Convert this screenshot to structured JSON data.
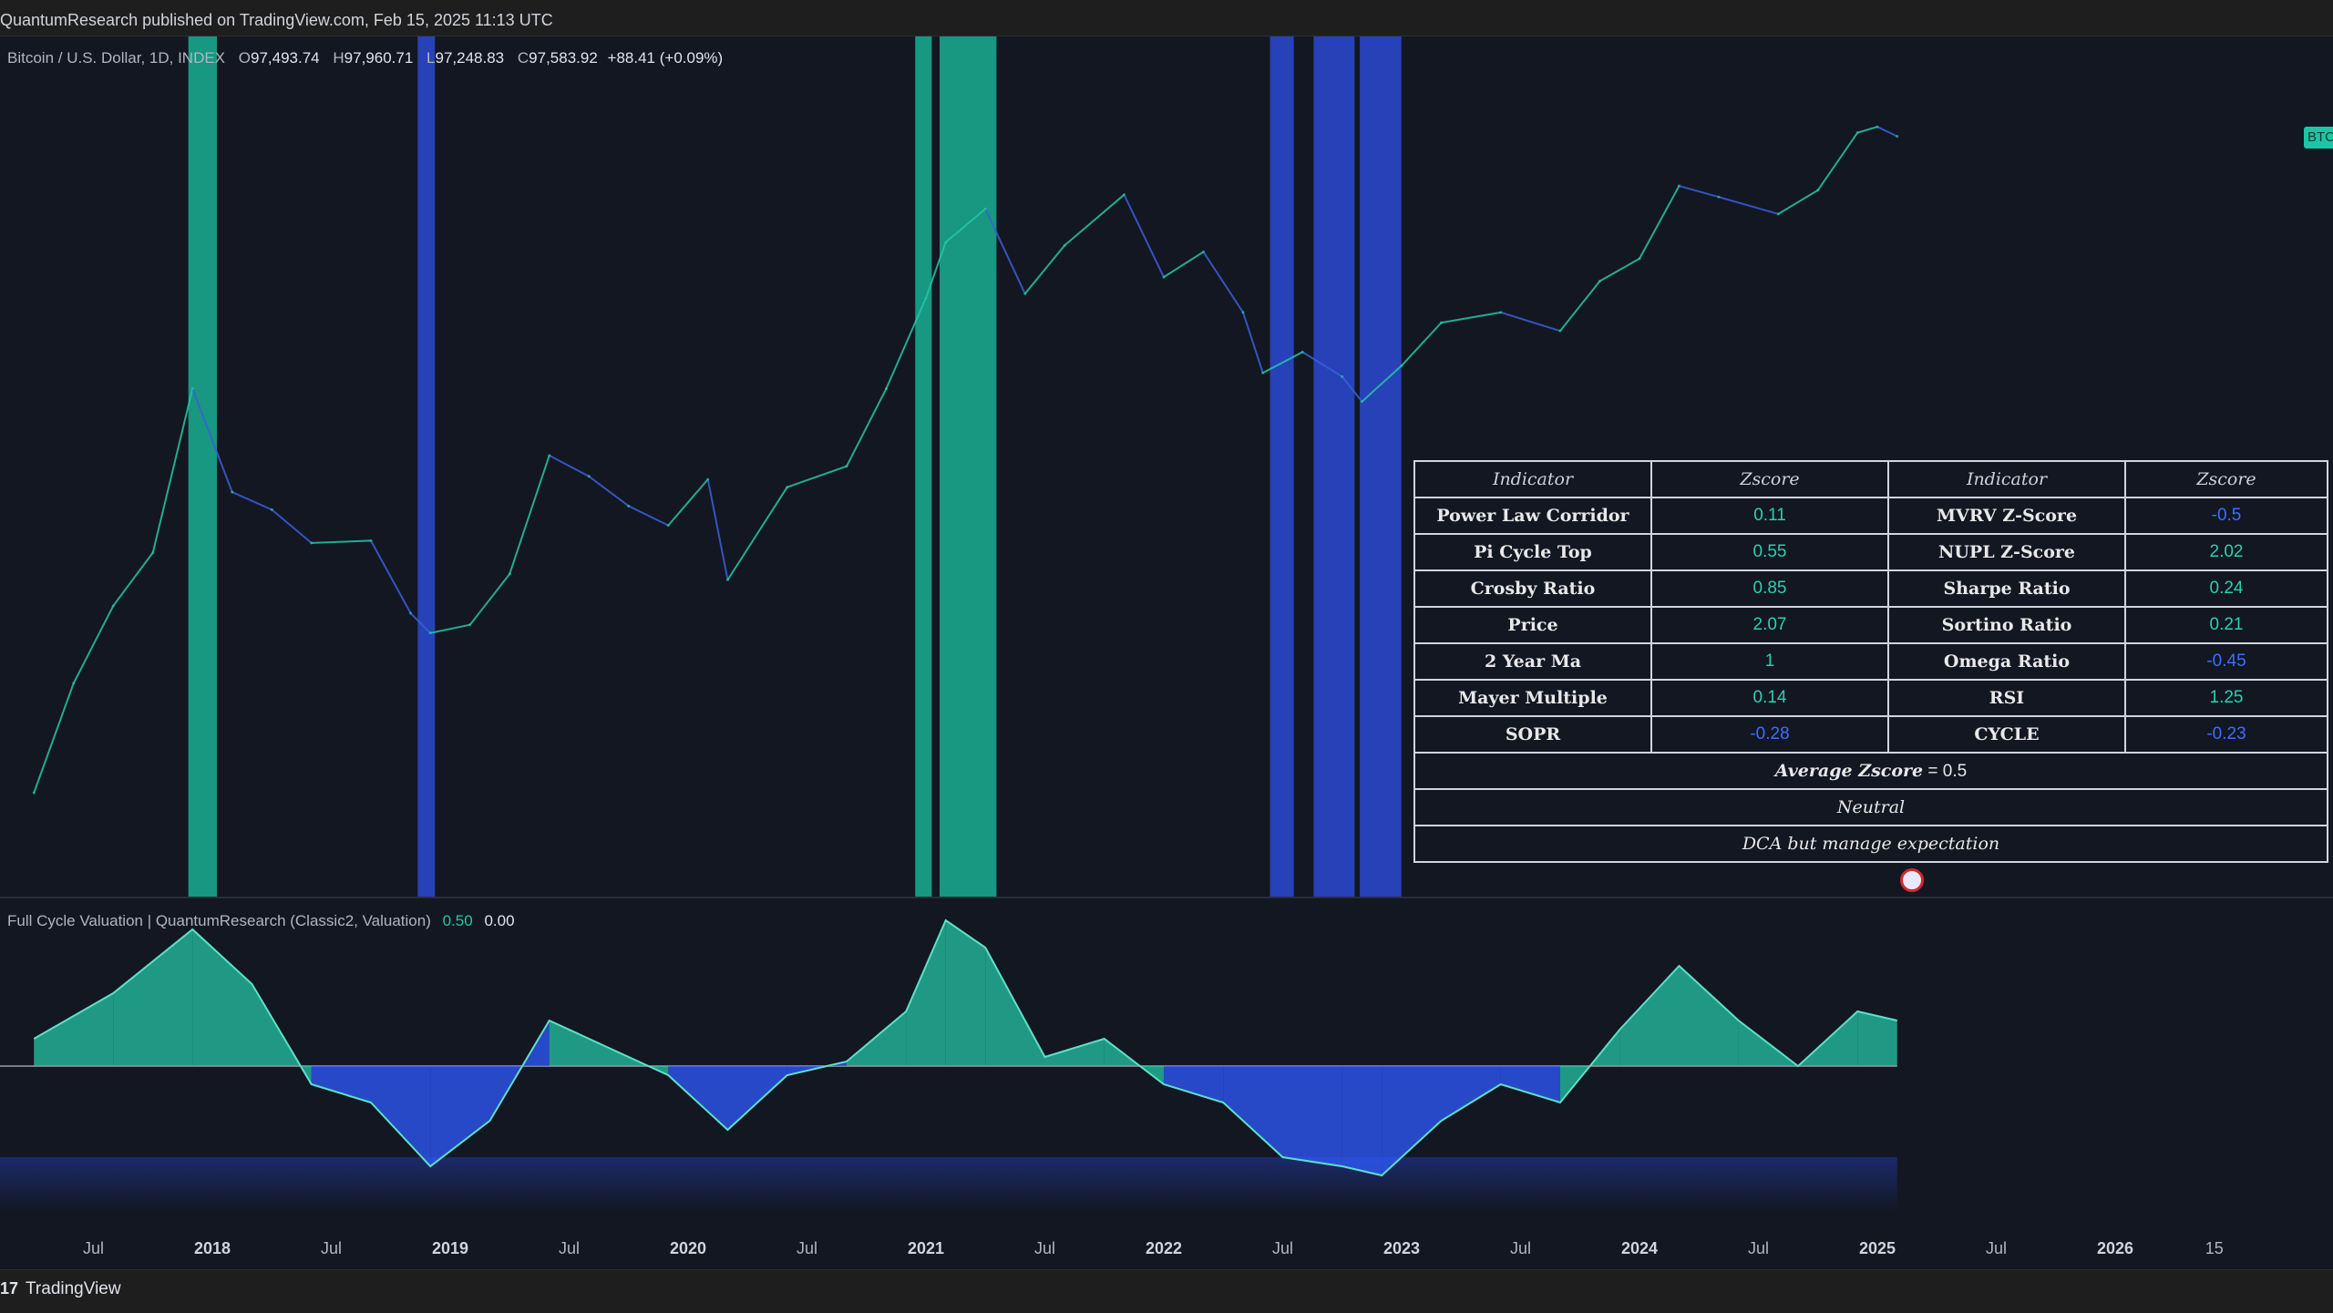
{
  "header": {
    "publish_line": "QuantumResearch published on TradingView.com, Feb 15, 2025 11:13 UTC"
  },
  "symbol": {
    "name": "Bitcoin / U.S. Dollar, 1D, INDEX",
    "o_label": "O",
    "o": "97,493.74",
    "h_label": "H",
    "h": "97,960.71",
    "l_label": "L",
    "l": "97,248.83",
    "c_label": "C",
    "c": "97,583.92",
    "change": "+88.41 (+0.09%)",
    "price_tag": "BTC"
  },
  "indicator": {
    "label": "Full Cycle Valuation | QuantumResearch (Classic2, Valuation)",
    "value1": "0.50",
    "value2": "0.00"
  },
  "footer": {
    "brand": "TradingView",
    "brand_mark": "17"
  },
  "colors": {
    "bg": "#131722",
    "teal": "#26c6a6",
    "blue": "#2f5bff",
    "teal_band": "#1aa58c",
    "blue_band": "#2a46c9"
  },
  "chart_data": {
    "type": "line",
    "x_ticks": [
      "Jul",
      "2018",
      "Jul",
      "2019",
      "Jul",
      "2020",
      "Jul",
      "2021",
      "Jul",
      "2022",
      "Jul",
      "2023",
      "Jul",
      "2024",
      "Jul",
      "2025",
      "Jul",
      "2026",
      "15"
    ],
    "bold_ticks": [
      "2018",
      "2019",
      "2020",
      "2021",
      "2022",
      "2023",
      "2024",
      "2025",
      "2026"
    ],
    "x_range": [
      "2017-04",
      "2026-08"
    ],
    "price_series": [
      {
        "x": "2017-04",
        "y": 1200
      },
      {
        "x": "2017-06",
        "y": 2500
      },
      {
        "x": "2017-08",
        "y": 4200
      },
      {
        "x": "2017-10",
        "y": 6000
      },
      {
        "x": "2017-12",
        "y": 18000
      },
      {
        "x": "2018-02",
        "y": 9000
      },
      {
        "x": "2018-04",
        "y": 8000
      },
      {
        "x": "2018-06",
        "y": 6400
      },
      {
        "x": "2018-09",
        "y": 6500
      },
      {
        "x": "2018-11",
        "y": 4000
      },
      {
        "x": "2018-12",
        "y": 3500
      },
      {
        "x": "2019-02",
        "y": 3700
      },
      {
        "x": "2019-04",
        "y": 5200
      },
      {
        "x": "2019-06",
        "y": 11500
      },
      {
        "x": "2019-08",
        "y": 10000
      },
      {
        "x": "2019-10",
        "y": 8200
      },
      {
        "x": "2019-12",
        "y": 7200
      },
      {
        "x": "2020-02",
        "y": 9800
      },
      {
        "x": "2020-03",
        "y": 5000
      },
      {
        "x": "2020-06",
        "y": 9300
      },
      {
        "x": "2020-09",
        "y": 10700
      },
      {
        "x": "2020-11",
        "y": 18000
      },
      {
        "x": "2021-01",
        "y": 33000
      },
      {
        "x": "2021-02",
        "y": 48000
      },
      {
        "x": "2021-04",
        "y": 60000
      },
      {
        "x": "2021-06",
        "y": 34000
      },
      {
        "x": "2021-08",
        "y": 47000
      },
      {
        "x": "2021-11",
        "y": 66000
      },
      {
        "x": "2022-01",
        "y": 38000
      },
      {
        "x": "2022-03",
        "y": 45000
      },
      {
        "x": "2022-05",
        "y": 30000
      },
      {
        "x": "2022-06",
        "y": 20000
      },
      {
        "x": "2022-08",
        "y": 23000
      },
      {
        "x": "2022-10",
        "y": 19500
      },
      {
        "x": "2022-11",
        "y": 16500
      },
      {
        "x": "2023-01",
        "y": 21000
      },
      {
        "x": "2023-03",
        "y": 28000
      },
      {
        "x": "2023-06",
        "y": 30000
      },
      {
        "x": "2023-09",
        "y": 26500
      },
      {
        "x": "2023-11",
        "y": 37000
      },
      {
        "x": "2024-01",
        "y": 43000
      },
      {
        "x": "2024-03",
        "y": 70000
      },
      {
        "x": "2024-05",
        "y": 65000
      },
      {
        "x": "2024-08",
        "y": 58000
      },
      {
        "x": "2024-10",
        "y": 68000
      },
      {
        "x": "2024-12",
        "y": 100000
      },
      {
        "x": "2025-01",
        "y": 104000
      },
      {
        "x": "2025-02",
        "y": 97583
      }
    ],
    "shaded_periods": [
      {
        "from": "2017-11-25",
        "to": "2018-01-08",
        "color": "teal"
      },
      {
        "from": "2018-11-12",
        "to": "2018-12-08",
        "color": "blue"
      },
      {
        "from": "2020-12-15",
        "to": "2021-01-10",
        "color": "teal"
      },
      {
        "from": "2021-01-22",
        "to": "2021-04-18",
        "color": "teal"
      },
      {
        "from": "2022-06-12",
        "to": "2022-07-18",
        "color": "blue"
      },
      {
        "from": "2022-08-18",
        "to": "2022-10-20",
        "color": "blue"
      },
      {
        "from": "2022-10-28",
        "to": "2022-12-31",
        "color": "blue"
      }
    ],
    "valuation_series": [
      {
        "x": "2017-04",
        "y": 0.3
      },
      {
        "x": "2017-08",
        "y": 0.8
      },
      {
        "x": "2017-12",
        "y": 1.5
      },
      {
        "x": "2018-03",
        "y": 0.9
      },
      {
        "x": "2018-06",
        "y": -0.2
      },
      {
        "x": "2018-09",
        "y": -0.4
      },
      {
        "x": "2018-12",
        "y": -1.1
      },
      {
        "x": "2019-03",
        "y": -0.6
      },
      {
        "x": "2019-06",
        "y": 0.5
      },
      {
        "x": "2019-09",
        "y": 0.2
      },
      {
        "x": "2019-12",
        "y": -0.1
      },
      {
        "x": "2020-03",
        "y": -0.7
      },
      {
        "x": "2020-06",
        "y": -0.1
      },
      {
        "x": "2020-09",
        "y": 0.05
      },
      {
        "x": "2020-12",
        "y": 0.6
      },
      {
        "x": "2021-02",
        "y": 1.6
      },
      {
        "x": "2021-04",
        "y": 1.3
      },
      {
        "x": "2021-07",
        "y": 0.1
      },
      {
        "x": "2021-10",
        "y": 0.3
      },
      {
        "x": "2022-01",
        "y": -0.2
      },
      {
        "x": "2022-04",
        "y": -0.4
      },
      {
        "x": "2022-07",
        "y": -1.0
      },
      {
        "x": "2022-10",
        "y": -1.1
      },
      {
        "x": "2022-12",
        "y": -1.2
      },
      {
        "x": "2023-03",
        "y": -0.6
      },
      {
        "x": "2023-06",
        "y": -0.2
      },
      {
        "x": "2023-09",
        "y": -0.4
      },
      {
        "x": "2023-12",
        "y": 0.4
      },
      {
        "x": "2024-03",
        "y": 1.1
      },
      {
        "x": "2024-06",
        "y": 0.5
      },
      {
        "x": "2024-09",
        "y": 0.0
      },
      {
        "x": "2024-12",
        "y": 0.6
      },
      {
        "x": "2025-02",
        "y": 0.5
      }
    ],
    "valuation_zero_line": 0
  },
  "table": {
    "headers": [
      "Indicator",
      "Zscore",
      "Indicator",
      "Zscore"
    ],
    "rows": [
      {
        "n1": "Power Law Corridor",
        "v1": "0.11",
        "s1": "pos",
        "n2": "MVRV Z-Score",
        "v2": "-0.5",
        "s2": "neg"
      },
      {
        "n1": "Pi Cycle Top",
        "v1": "0.55",
        "s1": "pos",
        "n2": "NUPL Z-Score",
        "v2": "2.02",
        "s2": "pos"
      },
      {
        "n1": "Crosby Ratio",
        "v1": "0.85",
        "s1": "pos",
        "n2": "Sharpe Ratio",
        "v2": "0.24",
        "s2": "pos"
      },
      {
        "n1": "Price",
        "v1": "2.07",
        "s1": "pos",
        "n2": "Sortino Ratio",
        "v2": "0.21",
        "s2": "pos"
      },
      {
        "n1": "2 Year Ma",
        "v1": "1",
        "s1": "pos",
        "n2": "Omega Ratio",
        "v2": "-0.45",
        "s2": "neg"
      },
      {
        "n1": "Mayer Multiple",
        "v1": "0.14",
        "s1": "pos",
        "n2": "RSI",
        "v2": "1.25",
        "s2": "pos"
      },
      {
        "n1": "SOPR",
        "v1": "-0.28",
        "s1": "neg",
        "n2": "CYCLE",
        "v2": "-0.23",
        "s2": "neg"
      }
    ],
    "average_label": "Average Zscore",
    "average_eq": " =  0.5",
    "state": "Neutral",
    "advice": "DCA but manage expectation"
  }
}
